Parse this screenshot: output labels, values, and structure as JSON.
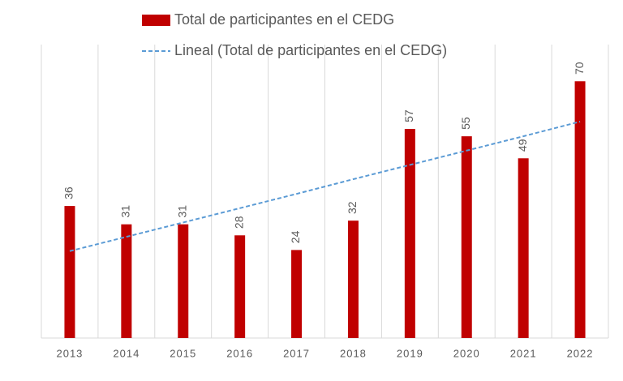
{
  "chart_data": {
    "type": "bar",
    "categories": [
      "2013",
      "2014",
      "2015",
      "2016",
      "2017",
      "2018",
      "2019",
      "2020",
      "2021",
      "2022"
    ],
    "series": [
      {
        "name": "Total de participantes en el CEDG",
        "color": "#c00000",
        "values": [
          36,
          31,
          31,
          28,
          24,
          32,
          57,
          55,
          49,
          70
        ]
      },
      {
        "name": "Lineal (Total de participantes en el CEDG)",
        "type": "trendline",
        "color": "#5b9bd5",
        "values": [
          23.7,
          27.6,
          31.5,
          35.4,
          39.3,
          43.3,
          47.2,
          51.1,
          55.0,
          59.0
        ]
      }
    ],
    "ylim": [
      0,
      80
    ],
    "grid": true,
    "legend": "top"
  }
}
